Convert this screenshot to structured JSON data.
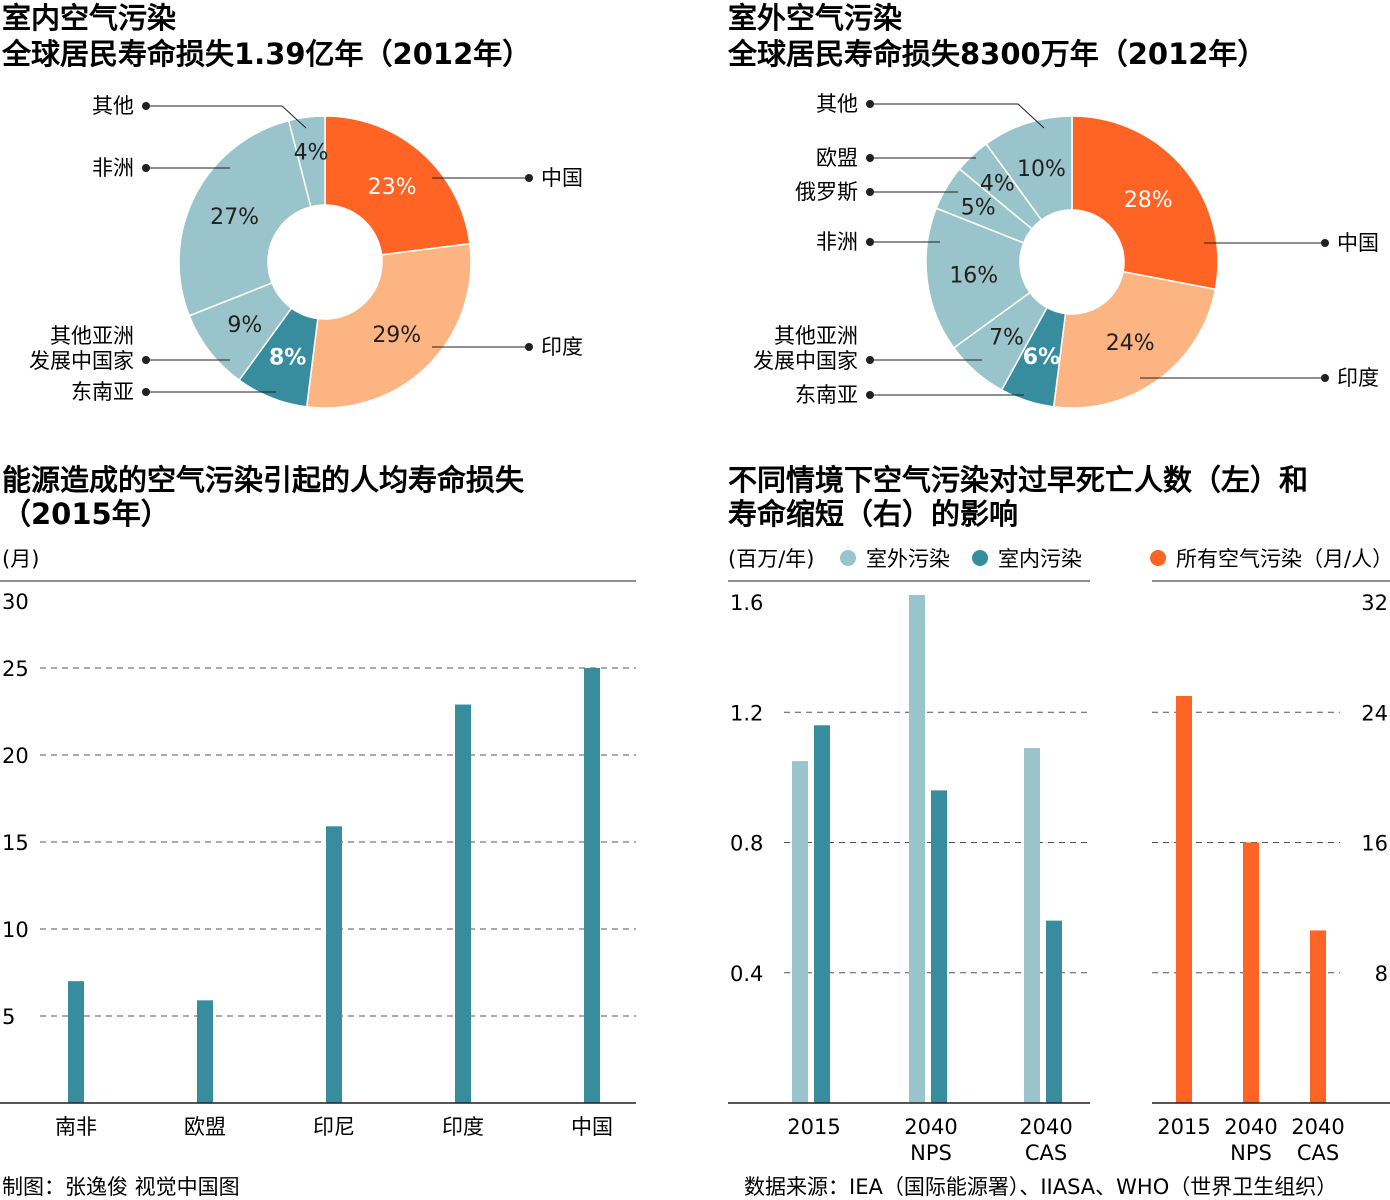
{
  "colors": {
    "china": "#ff6424",
    "india": "#fbb482",
    "light_teal": "#99c4cb",
    "dark_teal": "#378c9e",
    "axis": "#231f20",
    "grid": "#555555"
  },
  "chart_data": [
    {
      "type": "pie",
      "title_line1": "室内空气污染",
      "title_line2": "全球居民寿命损失1.39亿年（2012年）",
      "slices": [
        {
          "label": "中国",
          "value": 23,
          "text": "23%"
        },
        {
          "label": "印度",
          "value": 29,
          "text": "29%"
        },
        {
          "label": "东南亚",
          "value": 8,
          "text": "8%"
        },
        {
          "label": "其他亚洲发展中国家",
          "label_lines": [
            "其他亚洲",
            "发展中国家"
          ],
          "value": 9,
          "text": "9%"
        },
        {
          "label": "非洲",
          "value": 27,
          "text": "27%"
        },
        {
          "label": "其他",
          "value": 4,
          "text": "4%"
        }
      ]
    },
    {
      "type": "pie",
      "title_line1": "室外空气污染",
      "title_line2": "全球居民寿命损失8300万年（2012年）",
      "slices": [
        {
          "label": "中国",
          "value": 28,
          "text": "28%"
        },
        {
          "label": "印度",
          "value": 24,
          "text": "24%"
        },
        {
          "label": "东南亚",
          "value": 6,
          "text": "6%"
        },
        {
          "label": "其他亚洲发展中国家",
          "label_lines": [
            "其他亚洲",
            "发展中国家"
          ],
          "value": 7,
          "text": "7%"
        },
        {
          "label": "非洲",
          "value": 16,
          "text": "16%"
        },
        {
          "label": "俄罗斯",
          "value": 5,
          "text": "5%"
        },
        {
          "label": "欧盟",
          "value": 4,
          "text": "4%"
        },
        {
          "label": "其他",
          "value": 10,
          "text": "10%"
        }
      ]
    },
    {
      "type": "bar",
      "title_line1": "能源造成的空气污染引起的人均寿命损失",
      "title_line2": "（2015年）",
      "ylabel": "(月)",
      "categories": [
        "南非",
        "欧盟",
        "印尼",
        "印度",
        "中国"
      ],
      "values": [
        7,
        5.9,
        15.9,
        22.9,
        25
      ],
      "ylim": [
        0,
        30
      ],
      "yticks": [
        "30",
        "25",
        "20",
        "15",
        "10",
        "5"
      ],
      "ytick_values": [
        30,
        25,
        20,
        15,
        10,
        5
      ]
    },
    {
      "type": "bar",
      "title_line1": "不同情境下空气污染对过早死亡人数（左）和",
      "title_line2": "寿命缩短（右）的影响",
      "left": {
        "ylabel": "(百万/年)",
        "ylim": [
          0,
          1.6
        ],
        "yticks": [
          "1.6",
          "1.2",
          "0.8",
          "0.4"
        ],
        "ytick_values": [
          1.6,
          1.2,
          0.8,
          0.4
        ],
        "categories": [
          [
            "2015"
          ],
          [
            "2040",
            "NPS"
          ],
          [
            "2040",
            "CAS"
          ]
        ],
        "series": [
          {
            "name": "室外污染",
            "values": [
              1.05,
              1.56,
              1.09
            ]
          },
          {
            "name": "室内污染",
            "values": [
              1.16,
              0.96,
              0.56
            ]
          }
        ]
      },
      "right": {
        "legend": "所有空气污染（月/人）",
        "ylim": [
          0,
          32
        ],
        "yticks": [
          "32",
          "24",
          "16",
          "8"
        ],
        "ytick_values": [
          32,
          24,
          16,
          8
        ],
        "categories": [
          [
            "2015"
          ],
          [
            "2040",
            "NPS"
          ],
          [
            "2040",
            "CAS"
          ]
        ],
        "values": [
          25,
          16,
          10.6
        ]
      }
    }
  ],
  "footer": {
    "credit": "制图：张逸俊  视觉中国图",
    "source": "数据来源：IEA（国际能源署）、IIASA、WHO（世界卫生组织）"
  }
}
